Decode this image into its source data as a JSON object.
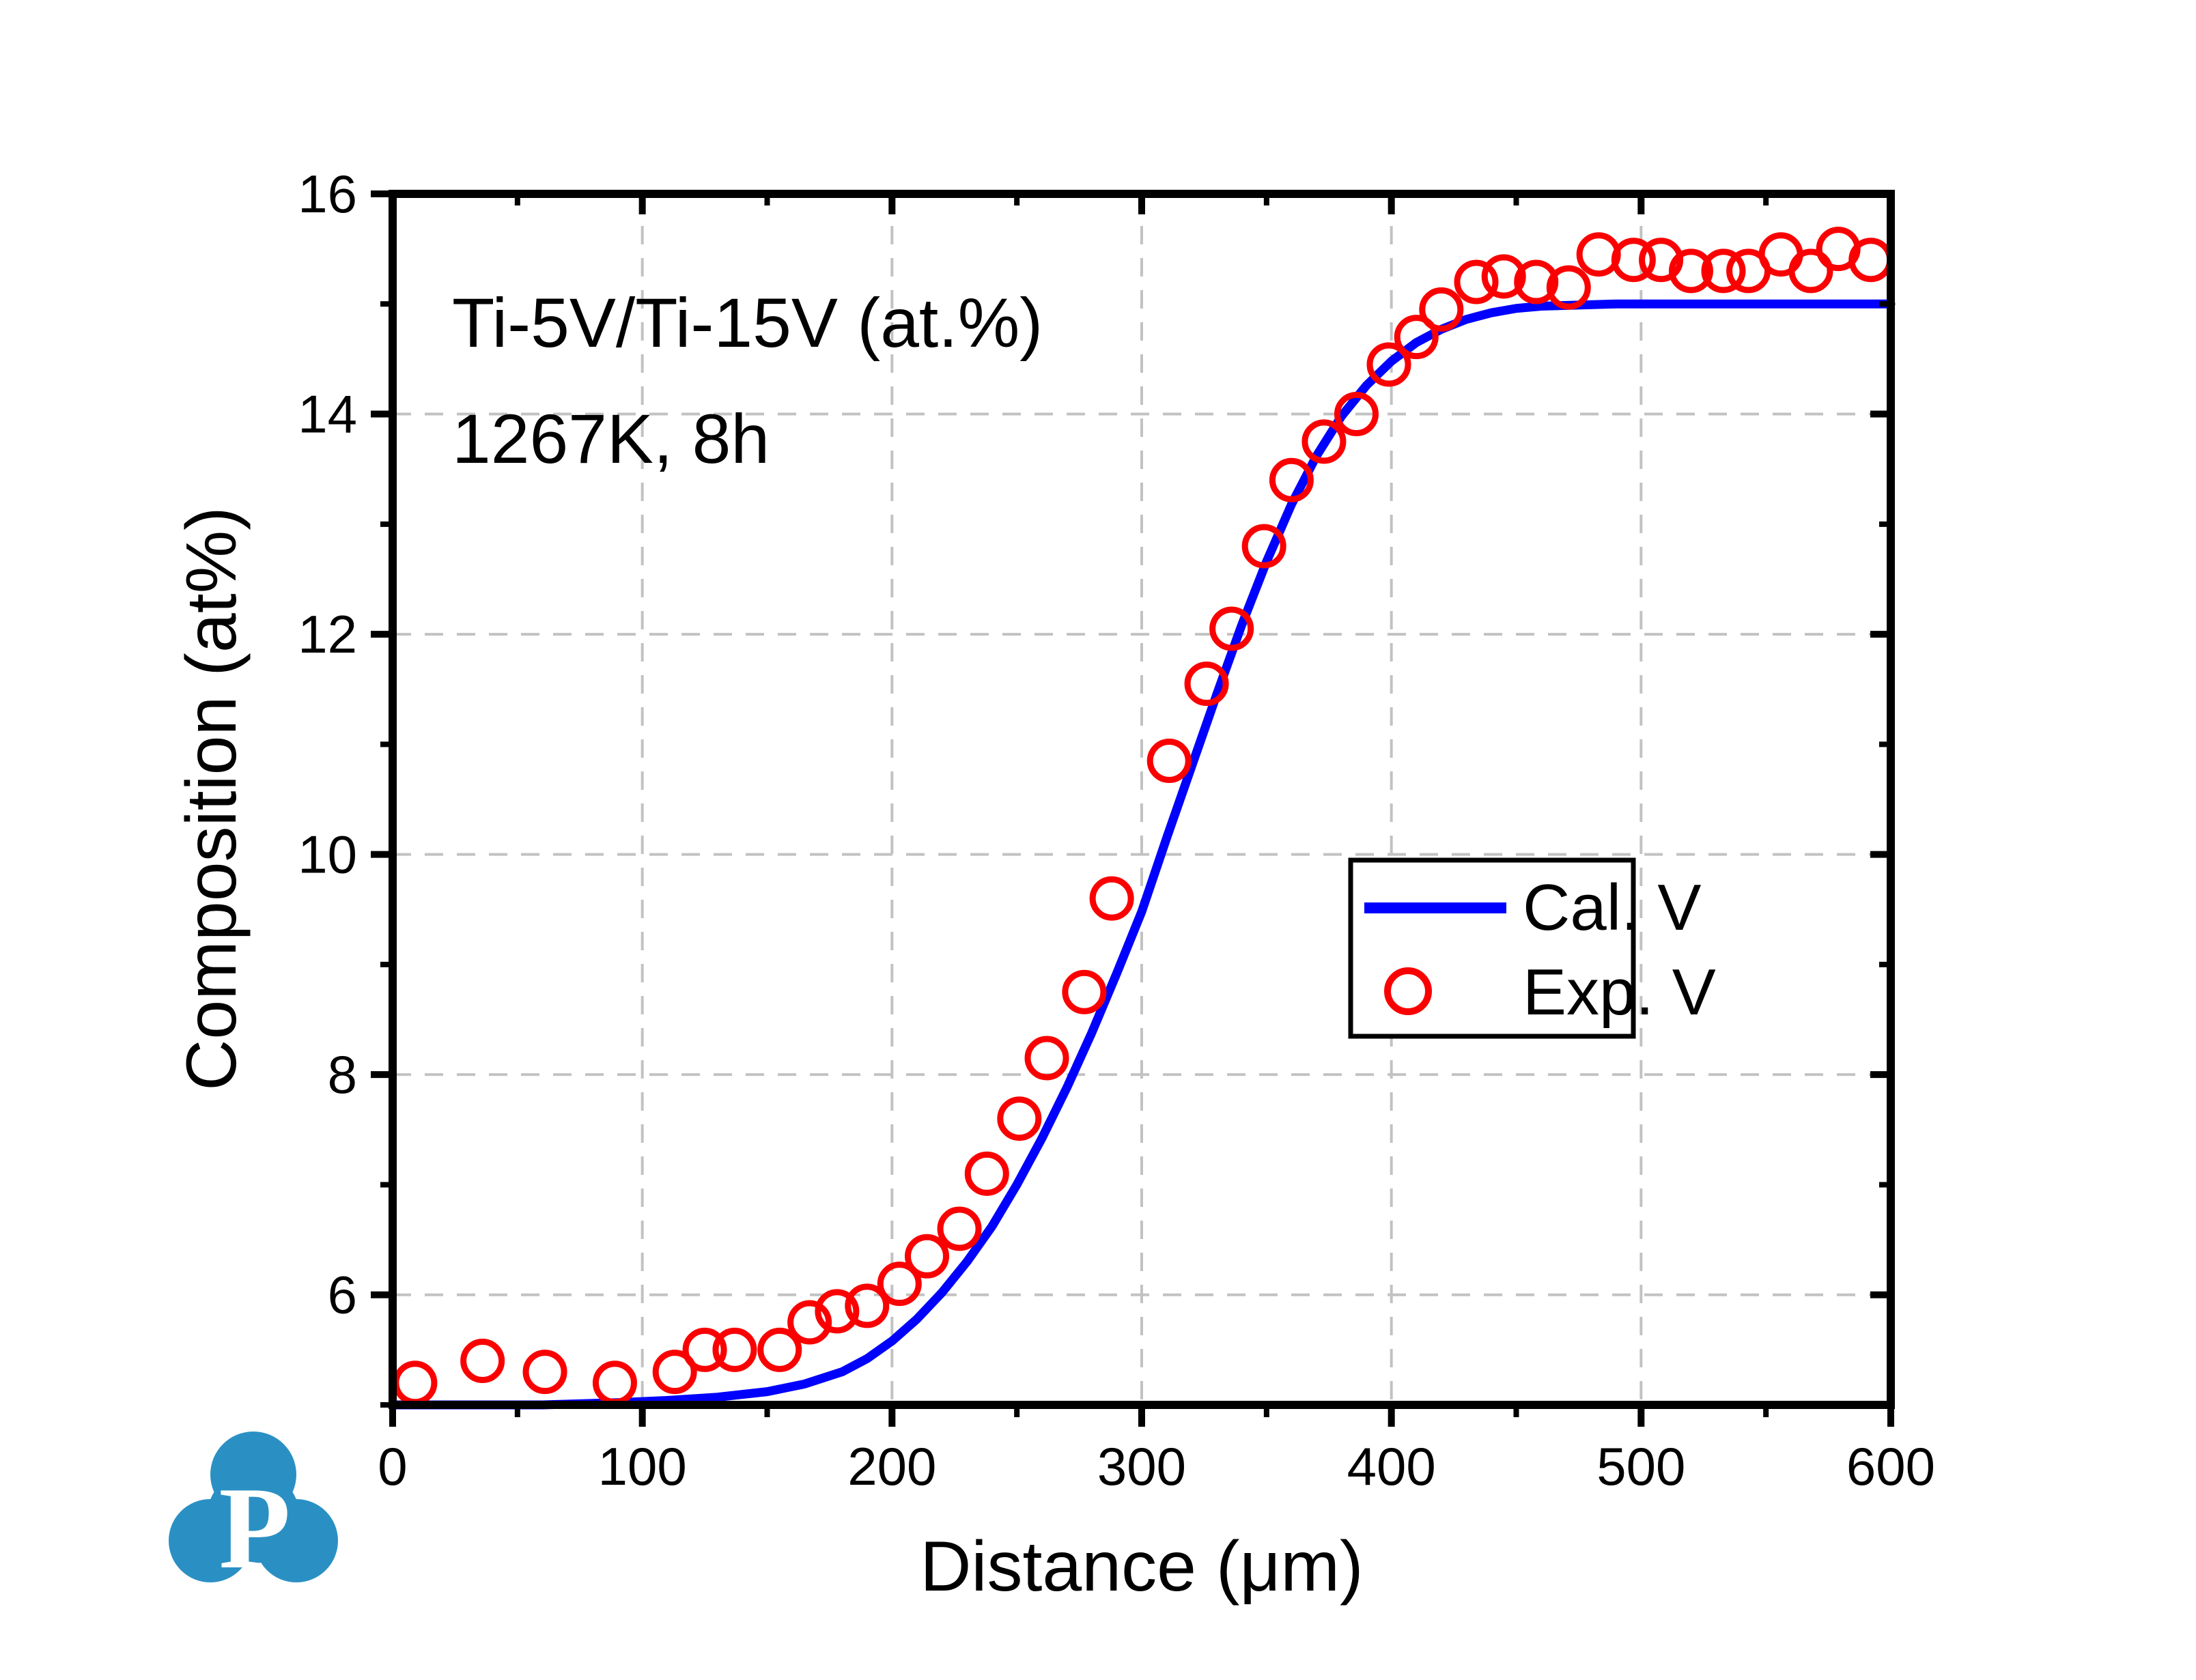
{
  "page": {
    "background": "#ffffff"
  },
  "chart_data": {
    "type": "line+scatter",
    "annotation_lines": [
      "Ti-5V/Ti-15V (at.%)",
      "1267K, 8h"
    ],
    "xlabel": "Distance (μm)",
    "ylabel": "Composition (at%)",
    "xlim": [
      0,
      600
    ],
    "ylim": [
      5,
      16
    ],
    "x_major_ticks": [
      0,
      100,
      200,
      300,
      400,
      500,
      600
    ],
    "x_tick_labels": [
      "0",
      "100",
      "200",
      "300",
      "400",
      "500",
      "600"
    ],
    "x_minor_ticks": [
      50,
      150,
      250,
      350,
      450,
      550
    ],
    "y_major_ticks": [
      6,
      8,
      10,
      12,
      14,
      16
    ],
    "y_tick_labels": [
      "6",
      "8",
      "10",
      "12",
      "14",
      "16"
    ],
    "y_minor_ticks": [
      5,
      7,
      9,
      11,
      13,
      15
    ],
    "grid": {
      "show": true,
      "style": "dashed",
      "color": "#c2c2c2",
      "at_x": [
        100,
        200,
        300,
        400,
        500
      ],
      "at_y": [
        6,
        8,
        10,
        12,
        14
      ]
    },
    "legend": {
      "position": "center-right",
      "entries": [
        {
          "label": "Cal. V",
          "marker": "line",
          "color": "#0000fe"
        },
        {
          "label": "Exp. V",
          "marker": "open-circle",
          "color": "#fb0000"
        }
      ]
    },
    "series": [
      {
        "name": "Cal. V",
        "type": "line",
        "color": "#0000fe",
        "points": [
          [
            0,
            5.0
          ],
          [
            30,
            5.0
          ],
          [
            60,
            5.0
          ],
          [
            90,
            5.02
          ],
          [
            110,
            5.04
          ],
          [
            130,
            5.07
          ],
          [
            150,
            5.12
          ],
          [
            165,
            5.19
          ],
          [
            180,
            5.3
          ],
          [
            190,
            5.42
          ],
          [
            200,
            5.58
          ],
          [
            210,
            5.78
          ],
          [
            220,
            6.02
          ],
          [
            230,
            6.3
          ],
          [
            240,
            6.62
          ],
          [
            250,
            7.0
          ],
          [
            260,
            7.42
          ],
          [
            270,
            7.88
          ],
          [
            280,
            8.38
          ],
          [
            290,
            8.92
          ],
          [
            300,
            9.48
          ],
          [
            310,
            10.15
          ],
          [
            320,
            10.8
          ],
          [
            330,
            11.45
          ],
          [
            340,
            12.08
          ],
          [
            350,
            12.66
          ],
          [
            360,
            13.18
          ],
          [
            370,
            13.62
          ],
          [
            380,
            13.98
          ],
          [
            390,
            14.26
          ],
          [
            400,
            14.48
          ],
          [
            410,
            14.65
          ],
          [
            420,
            14.77
          ],
          [
            430,
            14.86
          ],
          [
            440,
            14.92
          ],
          [
            450,
            14.96
          ],
          [
            460,
            14.98
          ],
          [
            475,
            14.99
          ],
          [
            490,
            15.0
          ],
          [
            520,
            15.0
          ],
          [
            560,
            15.0
          ],
          [
            600,
            15.0
          ]
        ]
      },
      {
        "name": "Exp. V",
        "type": "scatter",
        "color": "#fb0000",
        "points": [
          [
            9,
            5.2
          ],
          [
            36,
            5.4
          ],
          [
            61,
            5.3
          ],
          [
            89,
            5.2
          ],
          [
            113,
            5.3
          ],
          [
            125,
            5.5
          ],
          [
            137,
            5.5
          ],
          [
            155,
            5.5
          ],
          [
            167,
            5.75
          ],
          [
            178,
            5.85
          ],
          [
            190,
            5.9
          ],
          [
            203,
            6.1
          ],
          [
            214,
            6.35
          ],
          [
            227,
            6.6
          ],
          [
            238,
            7.1
          ],
          [
            251,
            7.6
          ],
          [
            262,
            8.15
          ],
          [
            277,
            8.75
          ],
          [
            288,
            9.6
          ],
          [
            311,
            10.85
          ],
          [
            326,
            11.55
          ],
          [
            336,
            12.05
          ],
          [
            349,
            12.8
          ],
          [
            360,
            13.4
          ],
          [
            373,
            13.75
          ],
          [
            386,
            14.0
          ],
          [
            399,
            14.45
          ],
          [
            410,
            14.7
          ],
          [
            420,
            14.95
          ],
          [
            434,
            15.2
          ],
          [
            445,
            15.25
          ],
          [
            458,
            15.2
          ],
          [
            471,
            15.15
          ],
          [
            483,
            15.45
          ],
          [
            497,
            15.4
          ],
          [
            508,
            15.4
          ],
          [
            520,
            15.3
          ],
          [
            533,
            15.3
          ],
          [
            543,
            15.3
          ],
          [
            556,
            15.45
          ],
          [
            568,
            15.3
          ],
          [
            579,
            15.5
          ],
          [
            592,
            15.4
          ]
        ]
      }
    ]
  },
  "logo": {
    "letter": "P",
    "color": "#2a90c4",
    "letter_color": "#ffffff"
  }
}
